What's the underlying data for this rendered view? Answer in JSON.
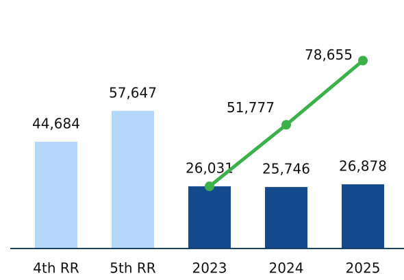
{
  "chart_data": {
    "type": "bar",
    "categories": [
      "4th RR",
      "5th RR",
      "2023",
      "2024",
      "2025"
    ],
    "values": [
      44684,
      57647,
      26031,
      25746,
      26878
    ],
    "value_labels": [
      "44,684",
      "57,647",
      "26,031",
      "25,746",
      "26,878"
    ],
    "colors": [
      "#b4d7fb",
      "#b4d7fb",
      "#134a8e",
      "#134a8e",
      "#134a8e"
    ],
    "line": {
      "type": "line",
      "color": "#3cb04a",
      "values": [
        null,
        null,
        26031,
        51777,
        78655
      ],
      "value_labels": [
        null,
        null,
        null,
        "51,777",
        "78,655"
      ]
    },
    "ylim": [
      0,
      100000
    ]
  }
}
